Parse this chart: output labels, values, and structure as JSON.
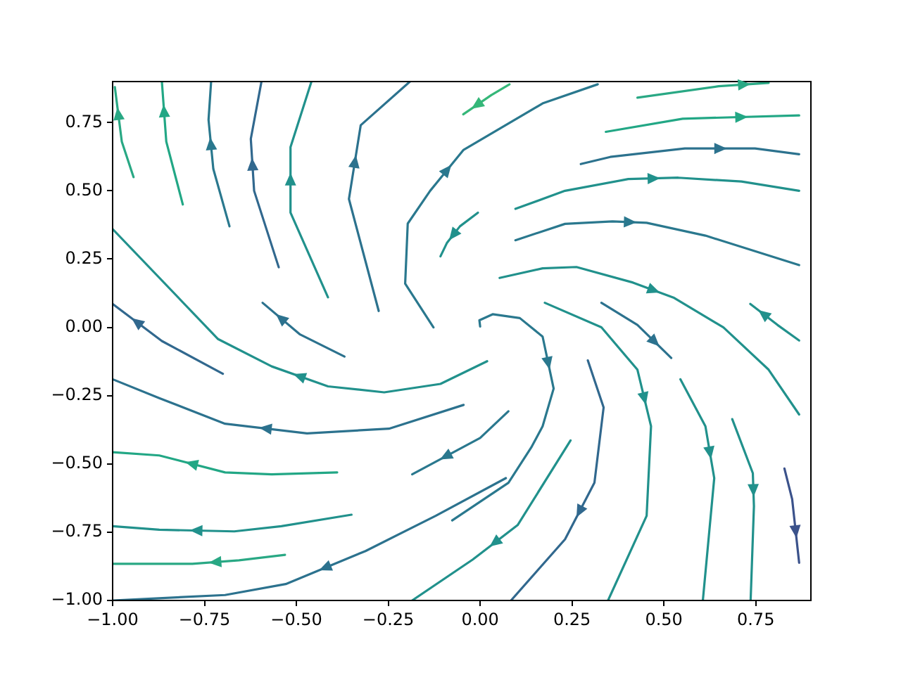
{
  "chart_data": {
    "type": "line",
    "xlim": [
      -1,
      0.9
    ],
    "ylim": [
      -1,
      0.9
    ],
    "xticks": [
      {
        "value": -1,
        "label": "−1.00"
      },
      {
        "value": -0.75,
        "label": "−0.75"
      },
      {
        "value": -0.5,
        "label": "−0.50"
      },
      {
        "value": -0.25,
        "label": "−0.25"
      },
      {
        "value": 0,
        "label": "0.00"
      },
      {
        "value": 0.25,
        "label": "0.25"
      },
      {
        "value": 0.5,
        "label": "0.50"
      },
      {
        "value": 0.75,
        "label": "0.75"
      }
    ],
    "yticks": [
      {
        "value": -1,
        "label": "−1.00"
      },
      {
        "value": -0.75,
        "label": "−0.75"
      },
      {
        "value": -0.5,
        "label": "−0.50"
      },
      {
        "value": -0.25,
        "label": "−0.25"
      },
      {
        "value": 0,
        "label": "0.00"
      },
      {
        "value": 0.25,
        "label": "0.25"
      },
      {
        "value": 0.5,
        "label": "0.50"
      },
      {
        "value": 0.75,
        "label": "0.75"
      }
    ],
    "grid": false,
    "legend": false,
    "marker": "none",
    "line_style": "solid",
    "series": [
      {
        "color": "#29a884",
        "x": [
          -0.943,
          -0.975,
          -0.994
        ],
        "values": [
          0.55,
          0.68,
          0.88
        ]
      },
      {
        "color": "#22a785",
        "x": [
          -0.809,
          -0.854,
          -0.866
        ],
        "values": [
          0.45,
          0.68,
          0.9
        ]
      },
      {
        "color": "#2a788e",
        "x": [
          -0.682,
          -0.726,
          -0.739,
          -0.732
        ],
        "values": [
          0.37,
          0.58,
          0.76,
          0.9
        ]
      },
      {
        "color": "#31688e",
        "x": [
          -0.548,
          -0.615,
          -0.624,
          -0.595
        ],
        "values": [
          0.22,
          0.5,
          0.69,
          0.9
        ]
      },
      {
        "color": "#21918c",
        "x": [
          -0.414,
          -0.516,
          -0.516,
          -0.459
        ],
        "values": [
          0.11,
          0.42,
          0.66,
          0.9
        ]
      },
      {
        "color": "#2c728e",
        "x": [
          -0.276,
          -0.357,
          -0.325,
          -0.191
        ],
        "values": [
          0.06,
          0.47,
          0.74,
          0.9
        ]
      },
      {
        "color": "#2a788e",
        "x": [
          -0.127,
          -0.204,
          -0.197,
          -0.136,
          -0.045,
          0.17,
          0.32
        ],
        "values": [
          0,
          0.16,
          0.38,
          0.5,
          0.65,
          0.82,
          0.89
        ]
      },
      {
        "color": "#21918c",
        "x": [
          -0.006,
          -0.055,
          -0.09,
          -0.108
        ],
        "values": [
          0.42,
          0.37,
          0.31,
          0.26
        ]
      },
      {
        "color": "#35b779",
        "x": [
          0.08,
          0.03,
          -0.046
        ],
        "values": [
          0.89,
          0.85,
          0.78
        ]
      },
      {
        "color": "#21918c",
        "x": [
          0.019,
          -0.108,
          -0.261,
          -0.414,
          -0.567,
          -0.713,
          -1
        ],
        "values": [
          -0.124,
          -0.207,
          -0.238,
          -0.216,
          -0.143,
          -0.043,
          0.36
        ]
      },
      {
        "color": "#2c728e",
        "x": [
          -0.369,
          -0.49,
          -0.592
        ],
        "values": [
          -0.107,
          -0.026,
          0.09
        ]
      },
      {
        "color": "#31688e",
        "x": [
          -0.7,
          -0.866,
          -1
        ],
        "values": [
          -0.17,
          -0.05,
          0.086
        ]
      },
      {
        "color": "#2c728e",
        "x": [
          -0.045,
          -0.248,
          -0.471,
          -0.694,
          -0.873,
          -1
        ],
        "values": [
          -0.284,
          -0.371,
          -0.388,
          -0.353,
          -0.259,
          -0.19
        ]
      },
      {
        "color": "#22a785",
        "x": [
          -0.389,
          -0.567,
          -0.694,
          -0.873,
          -1
        ],
        "values": [
          -0.531,
          -0.538,
          -0.531,
          -0.469,
          -0.457
        ]
      },
      {
        "color": "#21918c",
        "x": [
          -0.35,
          -0.541,
          -0.669,
          -0.873,
          -1
        ],
        "values": [
          -0.686,
          -0.728,
          -0.747,
          -0.741,
          -0.728
        ]
      },
      {
        "color": "#29a884",
        "x": [
          -0.531,
          -0.656,
          -0.783,
          -1
        ],
        "values": [
          -0.833,
          -0.853,
          -0.866,
          -0.866
        ]
      },
      {
        "color": "#2c728e",
        "x": [
          0.07,
          -0.121,
          -0.312,
          -0.529,
          -0.694,
          -1
        ],
        "values": [
          -0.552,
          -0.69,
          -0.819,
          -0.94,
          -0.98,
          -1
        ]
      },
      {
        "color": "#2a788e",
        "x": [
          0.077,
          0,
          -0.185
        ],
        "values": [
          -0.307,
          -0.405,
          -0.538
        ]
      },
      {
        "color": "#21918c",
        "x": [
          0.246,
          0.102,
          -0.02,
          -0.185
        ],
        "values": [
          -0.414,
          -0.724,
          -0.85,
          -1
        ]
      },
      {
        "color": "#2a788e",
        "x": [
          0,
          -0.002,
          0.034,
          0.108,
          0.17,
          0.2,
          0.17,
          0.139,
          0.077,
          -0.076
        ],
        "values": [
          0.003,
          0.026,
          0.048,
          0.034,
          -0.034,
          -0.224,
          -0.362,
          -0.44,
          -0.569,
          -0.707
        ]
      },
      {
        "color": "#31688e",
        "x": [
          0.293,
          0.336,
          0.311,
          0.231,
          0.084
        ],
        "values": [
          -0.121,
          -0.293,
          -0.569,
          -0.776,
          -1
        ]
      },
      {
        "color": "#21918c",
        "x": [
          0.176,
          0.33,
          0.428,
          0.465,
          0.453,
          0.348
        ],
        "values": [
          0.09,
          0,
          -0.155,
          -0.362,
          -0.69,
          -1
        ]
      },
      {
        "color": "#2c728e",
        "x": [
          0.33,
          0.428,
          0.52
        ],
        "values": [
          0.09,
          0.009,
          -0.112
        ]
      },
      {
        "color": "#21918c",
        "x": [
          0.545,
          0.613,
          0.637,
          0.606
        ],
        "values": [
          -0.19,
          -0.362,
          -0.552,
          -1
        ]
      },
      {
        "color": "#21918c",
        "x": [
          0.686,
          0.742,
          0.745,
          0.736
        ],
        "values": [
          -0.336,
          -0.534,
          -0.655,
          -1
        ]
      },
      {
        "color": "#3b528b",
        "x": [
          0.828,
          0.849,
          0.868
        ],
        "values": [
          -0.517,
          -0.629,
          -0.862
        ]
      },
      {
        "color": "#21918c",
        "x": [
          0.868,
          0.809,
          0.735
        ],
        "values": [
          -0.048,
          0.009,
          0.086
        ]
      },
      {
        "color": "#21918c",
        "x": [
          0.053,
          0.17,
          0.262,
          0.416,
          0.526,
          0.662,
          0.785,
          0.868
        ],
        "values": [
          0.181,
          0.216,
          0.221,
          0.164,
          0.109,
          0,
          -0.155,
          -0.319
        ]
      },
      {
        "color": "#2a788e",
        "x": [
          0.096,
          0.231,
          0.36,
          0.453,
          0.613,
          0.868
        ],
        "values": [
          0.319,
          0.379,
          0.388,
          0.383,
          0.336,
          0.228
        ]
      },
      {
        "color": "#21918c",
        "x": [
          0.096,
          0.231,
          0.403,
          0.539,
          0.711,
          0.868
        ],
        "values": [
          0.434,
          0.5,
          0.543,
          0.548,
          0.534,
          0.5
        ]
      },
      {
        "color": "#2c728e",
        "x": [
          0.274,
          0.354,
          0.557,
          0.748,
          0.868
        ],
        "values": [
          0.598,
          0.624,
          0.655,
          0.655,
          0.634
        ]
      },
      {
        "color": "#22a785",
        "x": [
          0.342,
          0.551,
          0.868
        ],
        "values": [
          0.716,
          0.764,
          0.776
        ]
      },
      {
        "color": "#29a884",
        "x": [
          0.428,
          0.649,
          0.785
        ],
        "values": [
          0.841,
          0.883,
          0.895
        ]
      }
    ]
  }
}
